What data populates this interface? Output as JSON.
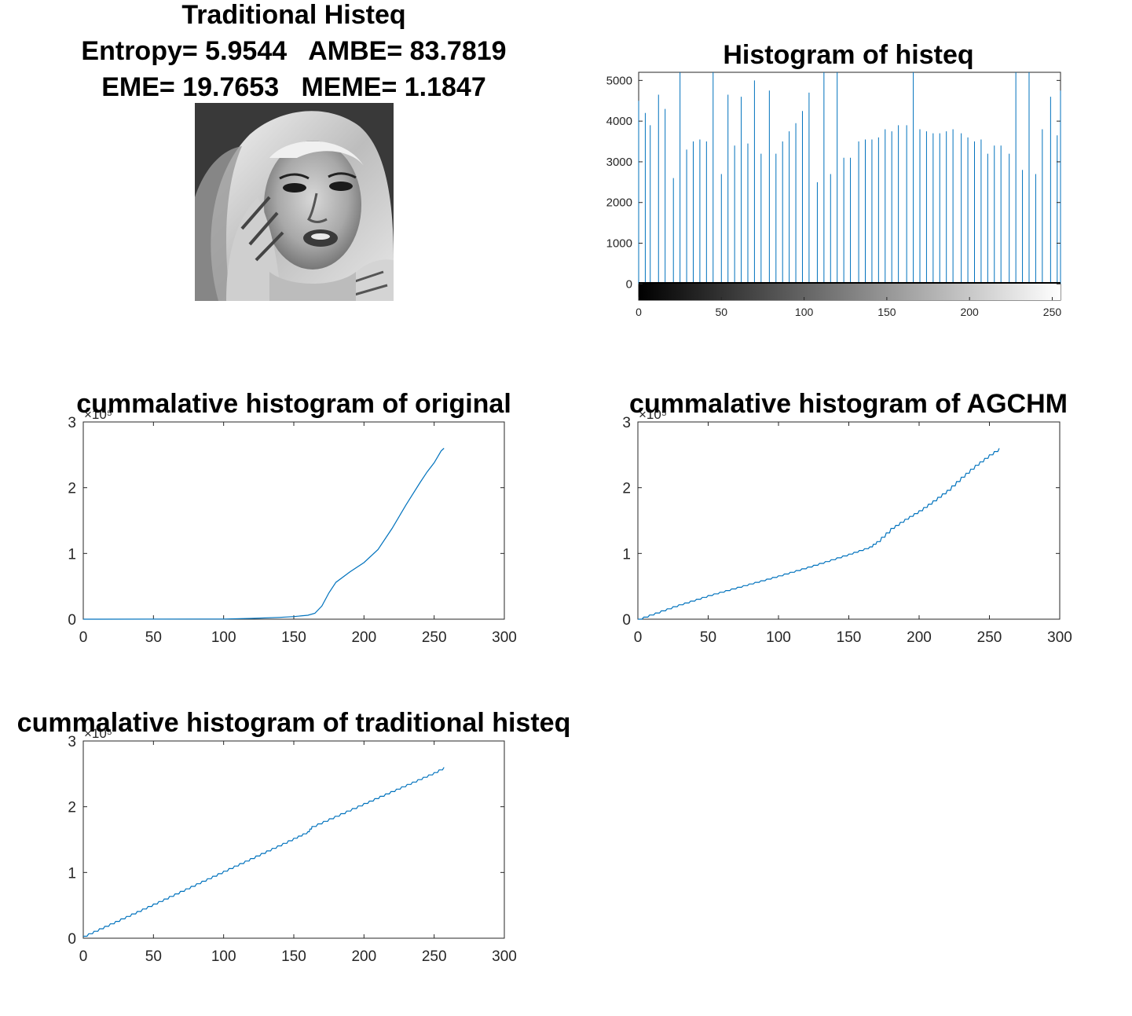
{
  "figure": {
    "image_panel": {
      "title_lines": [
        "Traditional Histeq",
        "Entropy= 5.9544   AMBE= 83.7819",
        "EME= 19.7653   MEME= 1.1847"
      ]
    }
  },
  "colors": {
    "series": "#0072BD",
    "axis": "#262626",
    "title": "#000000"
  },
  "chart_data": [
    {
      "type": "bar",
      "title": "Histogram of histeq",
      "xlabel": "",
      "ylabel": "",
      "xlim": [
        0,
        255
      ],
      "ylim": [
        -400,
        5200
      ],
      "xticks": [
        0,
        50,
        100,
        150,
        200,
        250
      ],
      "yticks": [
        0,
        1000,
        2000,
        3000,
        4000,
        5000
      ],
      "colorbar": "grayscale 0-255",
      "grid": false,
      "bins": [
        0,
        4,
        7,
        12,
        16,
        21,
        25,
        29,
        33,
        37,
        41,
        45,
        50,
        54,
        58,
        62,
        66,
        70,
        74,
        79,
        83,
        87,
        91,
        95,
        99,
        103,
        108,
        112,
        116,
        120,
        124,
        128,
        133,
        137,
        141,
        145,
        149,
        153,
        157,
        162,
        166,
        170,
        174,
        178,
        182,
        186,
        190,
        195,
        199,
        203,
        207,
        211,
        215,
        219,
        224,
        228,
        232,
        236,
        240,
        244,
        249,
        253,
        255
      ],
      "values": [
        4500,
        4200,
        3900,
        4650,
        4300,
        2600,
        5300,
        3300,
        3500,
        3550,
        3500,
        5300,
        2700,
        4650,
        3400,
        4600,
        3450,
        5000,
        3200,
        4750,
        3200,
        3500,
        3750,
        3950,
        4250,
        4700,
        2500,
        5300,
        2700,
        5300,
        3100,
        3100,
        3500,
        3550,
        3550,
        3600,
        3800,
        3750,
        3900,
        3900,
        5300,
        3800,
        3750,
        3700,
        3700,
        3750,
        3800,
        3700,
        3600,
        3500,
        3550,
        3200,
        3400,
        3400,
        3200,
        5300,
        2800,
        5300,
        2700,
        3800,
        4600,
        3650,
        4750
      ]
    },
    {
      "type": "line",
      "title": "cummalative histogram of original",
      "xlabel": "",
      "ylabel": "",
      "xlim": [
        0,
        300
      ],
      "ylim": [
        0,
        3
      ],
      "xticks": [
        0,
        50,
        100,
        150,
        200,
        250,
        300
      ],
      "yticks": [
        0,
        1,
        2,
        3
      ],
      "y_exponent_label": "×10⁵",
      "grid": false,
      "x": [
        0,
        100,
        120,
        140,
        150,
        160,
        165,
        170,
        175,
        180,
        190,
        200,
        210,
        220,
        230,
        240,
        245,
        250,
        255,
        257
      ],
      "y": [
        0,
        0.002,
        0.012,
        0.028,
        0.04,
        0.06,
        0.09,
        0.2,
        0.4,
        0.56,
        0.72,
        0.86,
        1.06,
        1.38,
        1.74,
        2.08,
        2.24,
        2.38,
        2.56,
        2.6
      ]
    },
    {
      "type": "line",
      "title": "cummalative histogram of AGCHM",
      "xlabel": "",
      "ylabel": "",
      "xlim": [
        0,
        300
      ],
      "ylim": [
        0,
        3
      ],
      "xticks": [
        0,
        50,
        100,
        150,
        200,
        250,
        300
      ],
      "yticks": [
        0,
        1,
        2,
        3
      ],
      "y_exponent_label": "×10⁵",
      "grid": false,
      "x": [
        0,
        25,
        50,
        75,
        100,
        125,
        150,
        165,
        170,
        180,
        190,
        200,
        210,
        220,
        230,
        240,
        250,
        257
      ],
      "y": [
        0,
        0.19,
        0.36,
        0.51,
        0.66,
        0.82,
        0.99,
        1.1,
        1.18,
        1.38,
        1.52,
        1.65,
        1.8,
        1.96,
        2.16,
        2.34,
        2.5,
        2.6
      ]
    },
    {
      "type": "line",
      "title": "cummalative histogram of traditional histeq",
      "xlabel": "",
      "ylabel": "",
      "xlim": [
        0,
        300
      ],
      "ylim": [
        0,
        3
      ],
      "xticks": [
        0,
        50,
        100,
        150,
        200,
        250,
        300
      ],
      "yticks": [
        0,
        1,
        2,
        3
      ],
      "y_exponent_label": "×10⁵",
      "grid": false,
      "x": [
        0,
        50,
        100,
        150,
        160,
        163,
        200,
        250,
        257
      ],
      "y": [
        0.03,
        0.52,
        1.02,
        1.52,
        1.62,
        1.7,
        2.05,
        2.52,
        2.6
      ]
    }
  ]
}
